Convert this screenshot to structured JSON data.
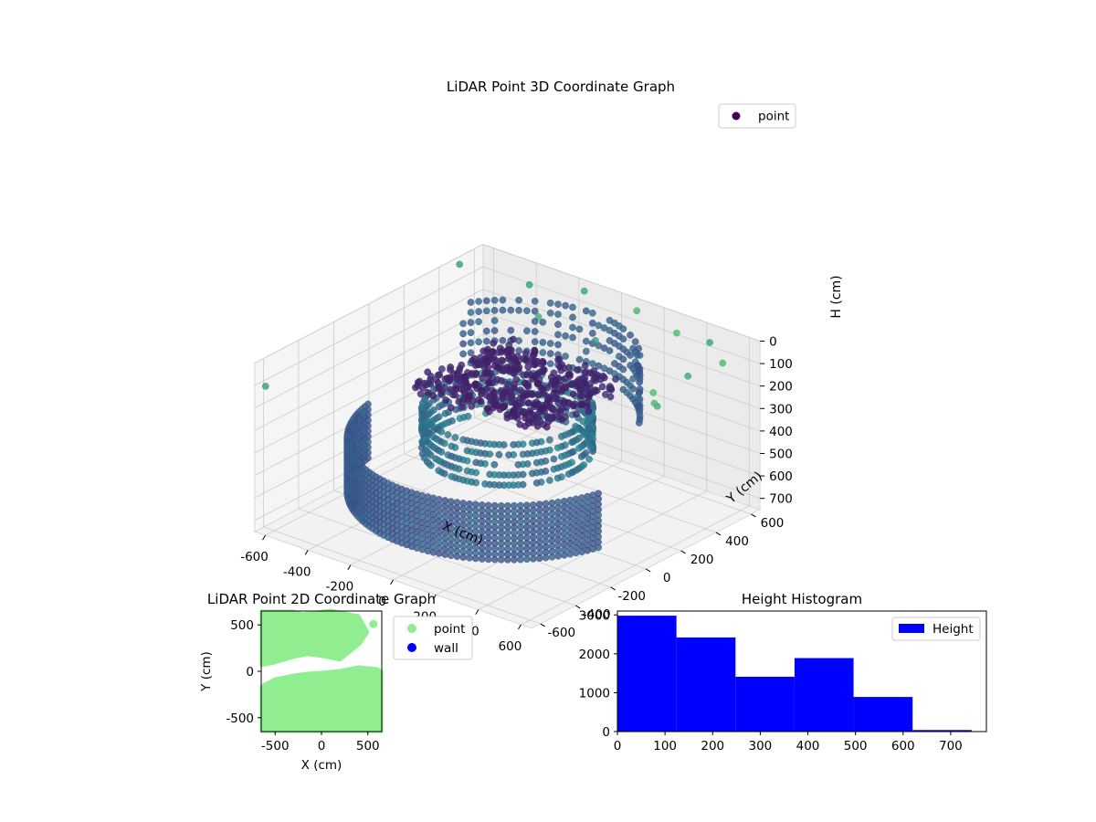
{
  "figure": {
    "background": "#ffffff"
  },
  "chart_data": [
    {
      "type": "scatter",
      "projection": "3d",
      "title": "LiDAR Point 3D Coordinate Graph",
      "xlabel": "X (cm)",
      "ylabel": "Y (cm)",
      "zlabel": "H (cm)",
      "xlim": [
        -650,
        650
      ],
      "ylim": [
        -650,
        650
      ],
      "zlim": [
        750,
        0
      ],
      "z_inverted": true,
      "xticks": [
        -600,
        -400,
        -200,
        0,
        200,
        400,
        600
      ],
      "yticks": [
        -600,
        -400,
        -200,
        0,
        200,
        400,
        600
      ],
      "zticks": [
        0,
        100,
        200,
        300,
        400,
        500,
        600,
        700
      ],
      "grid": true,
      "colormap": "viridis",
      "legend": {
        "entries": [
          "point"
        ],
        "location": "upper right",
        "marker_color": "#440154"
      },
      "structure": {
        "outer_wall": {
          "radius": 580,
          "h_range": [
            380,
            640
          ],
          "angle_range_deg": [
            190,
            345
          ]
        },
        "inner_ring": {
          "radius": 310,
          "h_range": [
            250,
            470
          ]
        },
        "rear_arc": {
          "radius": 480,
          "h_range": [
            20,
            300
          ],
          "angle_range_deg": [
            30,
            150
          ]
        },
        "central_cluster": {
          "x_range": [
            -250,
            350
          ],
          "y_range": [
            -250,
            250
          ],
          "h_range": [
            90,
            170
          ]
        }
      },
      "sparse_points": [
        {
          "x": -620,
          "y": 480,
          "h": 10
        },
        {
          "x": -350,
          "y": 550,
          "h": 40
        },
        {
          "x": -150,
          "y": 620,
          "h": 30
        },
        {
          "x": 80,
          "y": 640,
          "h": 50
        },
        {
          "x": 300,
          "y": 600,
          "h": 60
        },
        {
          "x": 480,
          "y": 570,
          "h": 30
        },
        {
          "x": 640,
          "y": 450,
          "h": 20
        },
        {
          "x": 600,
          "y": 300,
          "h": 30
        },
        {
          "x": -200,
          "y": 420,
          "h": 80
        },
        {
          "x": 100,
          "y": 380,
          "h": 70
        },
        {
          "x": 520,
          "y": 200,
          "h": 90
        },
        {
          "x": 640,
          "y": 60,
          "h": 40
        },
        {
          "x": 580,
          "y": 150,
          "h": 110
        },
        {
          "x": -640,
          "y": -600,
          "h": 120
        }
      ]
    },
    {
      "type": "scatter",
      "title": "LiDAR Point 2D Coordinate Graph",
      "xlabel": "X (cm)",
      "ylabel": "Y (cm)",
      "xlim": [
        -650,
        650
      ],
      "ylim": [
        -650,
        650
      ],
      "xticks": [
        -500,
        0,
        500
      ],
      "yticks": [
        -500,
        0,
        500
      ],
      "series": [
        {
          "name": "point",
          "color": "#90ee90",
          "region": {
            "upper": [
              [
                -650,
                650
              ],
              [
                -300,
                650
              ],
              [
                -200,
                620
              ],
              [
                100,
                660
              ],
              [
                400,
                600
              ],
              [
                470,
                480
              ],
              [
                500,
                420
              ],
              [
                420,
                300
              ],
              [
                300,
                200
              ],
              [
                200,
                120
              ],
              [
                100,
                140
              ],
              [
                0,
                160
              ],
              [
                -150,
                180
              ],
              [
                -300,
                150
              ],
              [
                -400,
                120
              ],
              [
                -500,
                90
              ],
              [
                -650,
                60
              ]
            ],
            "lower": [
              [
                -650,
                -160
              ],
              [
                -500,
                -80
              ],
              [
                -300,
                -40
              ],
              [
                -150,
                -20
              ],
              [
                0,
                -10
              ],
              [
                200,
                10
              ],
              [
                400,
                50
              ],
              [
                500,
                40
              ],
              [
                600,
                30
              ],
              [
                650,
                0
              ],
              [
                650,
                -650
              ],
              [
                -650,
                -650
              ]
            ]
          },
          "isolated_points": [
            {
              "x": 560,
              "y": 510
            }
          ]
        },
        {
          "name": "wall",
          "color": "#0000ff",
          "points": []
        }
      ],
      "legend": {
        "entries": [
          "point",
          "wall"
        ],
        "location": "outside right"
      }
    },
    {
      "type": "bar",
      "subtype": "histogram",
      "title": "Height Histogram",
      "xlabel": "",
      "ylabel": "",
      "xlim": [
        0,
        775
      ],
      "ylim": [
        0,
        3100
      ],
      "xticks": [
        0,
        100,
        200,
        300,
        400,
        500,
        600,
        700
      ],
      "yticks": [
        0,
        1000,
        2000,
        3000
      ],
      "bins": [
        {
          "start": 0,
          "end": 124,
          "count": 2980
        },
        {
          "start": 124,
          "end": 248,
          "count": 2420
        },
        {
          "start": 248,
          "end": 372,
          "count": 1410
        },
        {
          "start": 372,
          "end": 496,
          "count": 1890
        },
        {
          "start": 496,
          "end": 620,
          "count": 890
        },
        {
          "start": 620,
          "end": 744,
          "count": 40
        }
      ],
      "color": "#0000ff",
      "legend": {
        "entries": [
          "Height"
        ],
        "location": "upper right"
      }
    }
  ]
}
